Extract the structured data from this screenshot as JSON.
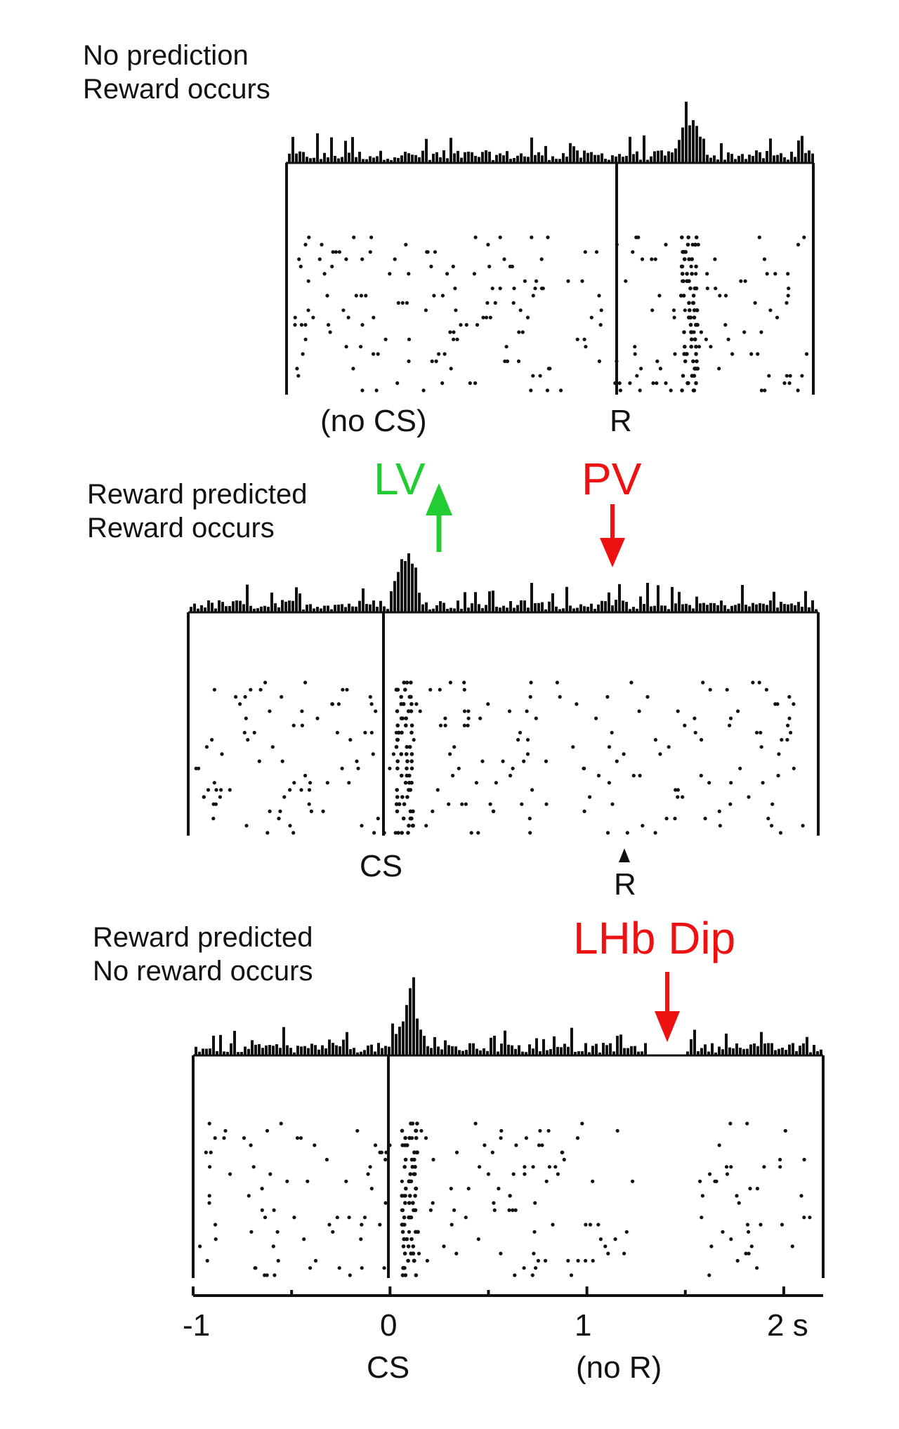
{
  "colors": {
    "ink": "#111111",
    "annotation_green": "#22cc33",
    "annotation_red": "#ee1111"
  },
  "panels": [
    {
      "id": "no-prediction",
      "title_line1": "No prediction",
      "title_line2": "Reward occurs",
      "marker_labels": {
        "left": "(no CS)",
        "event": "R"
      },
      "spike_peak_time_s": 1.3
    },
    {
      "id": "reward-predicted",
      "title_line1": "Reward predicted",
      "title_line2": "Reward occurs",
      "marker_labels": {
        "event": "CS",
        "reward": "R"
      },
      "spike_peak_time_s": 0.1
    },
    {
      "id": "reward-omitted",
      "title_line1": "Reward predicted",
      "title_line2": "No reward occurs",
      "spike_peak_time_s": 0.1,
      "dip_time_s": 1.4
    }
  ],
  "annotations": {
    "lv": {
      "label": "LV",
      "color": "#22cc33",
      "direction": "up"
    },
    "pv": {
      "label": "PV",
      "color": "#ee1111",
      "direction": "down"
    },
    "lhb_dip": {
      "label": "LHb Dip",
      "color": "#ee1111",
      "direction": "down"
    }
  },
  "time_axis": {
    "range_s": [
      -1,
      2.2
    ],
    "tick_labels": [
      "-1",
      "0",
      "1",
      "2 s"
    ],
    "sub_labels": {
      "zero": "CS",
      "one": "(no R)"
    }
  }
}
